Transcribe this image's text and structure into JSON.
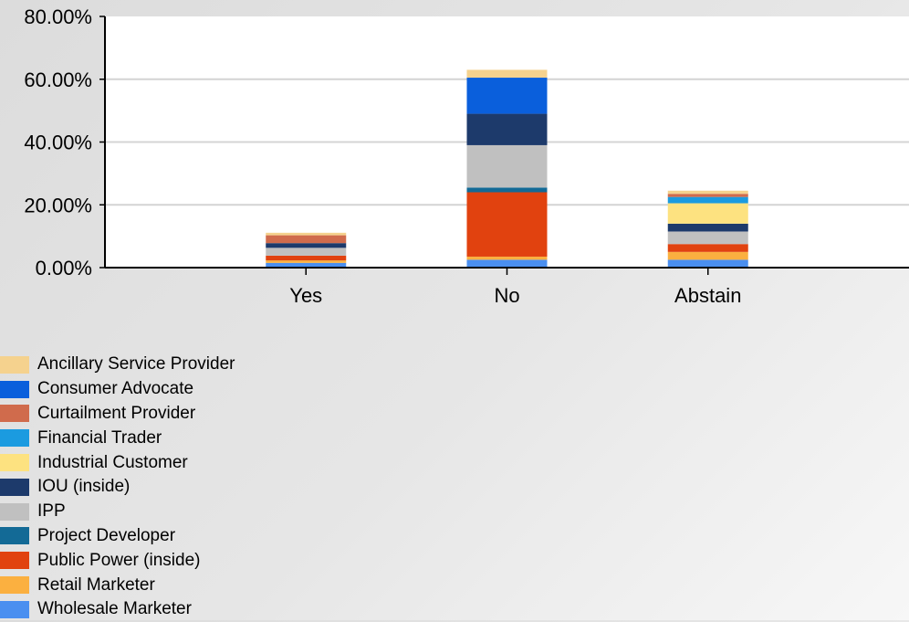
{
  "chart_data": {
    "type": "bar",
    "stacked": true,
    "categories": [
      "Yes",
      "No",
      "Abstain"
    ],
    "ylim": [
      0,
      80
    ],
    "yticks": [
      "0.00%",
      "20.00%",
      "40.00%",
      "60.00%",
      "80.00%"
    ],
    "grid": true,
    "legend": "bottom-left",
    "series": [
      {
        "name": "Wholesale Marketer",
        "color": "#4a8ff0",
        "values": [
          1.5,
          2.5,
          2.5
        ]
      },
      {
        "name": "Retail Marketer",
        "color": "#fbb040",
        "values": [
          0.8,
          1.0,
          2.5
        ]
      },
      {
        "name": "Public Power (inside)",
        "color": "#e1420f",
        "values": [
          1.5,
          20.5,
          2.5
        ]
      },
      {
        "name": "Project Developer",
        "color": "#136a96",
        "values": [
          0.0,
          1.5,
          0.0
        ]
      },
      {
        "name": "IPP",
        "color": "#c0c0c0",
        "values": [
          2.5,
          13.5,
          4.0
        ]
      },
      {
        "name": "IOU (inside)",
        "color": "#1d3a6b",
        "values": [
          1.5,
          10.0,
          2.5
        ]
      },
      {
        "name": "Industrial Customer",
        "color": "#fde280",
        "values": [
          0.0,
          0.0,
          6.5
        ]
      },
      {
        "name": "Financial Trader",
        "color": "#1b9be0",
        "values": [
          0.0,
          0.0,
          2.0
        ]
      },
      {
        "name": "Curtailment Provider",
        "color": "#d06b4c",
        "values": [
          2.5,
          0.0,
          1.0
        ]
      },
      {
        "name": "Consumer Advocate",
        "color": "#0a5fdc",
        "values": [
          0.0,
          11.5,
          0.0
        ]
      },
      {
        "name": "Ancillary Service Provider",
        "color": "#f5d28e",
        "values": [
          0.8,
          2.5,
          1.0
        ]
      }
    ],
    "legend_order": [
      "Ancillary Service Provider",
      "Consumer Advocate",
      "Curtailment Provider",
      "Financial Trader",
      "Industrial Customer",
      "IOU (inside)",
      "IPP",
      "Project Developer",
      "Public Power (inside)",
      "Retail Marketer",
      "Wholesale Marketer"
    ]
  }
}
